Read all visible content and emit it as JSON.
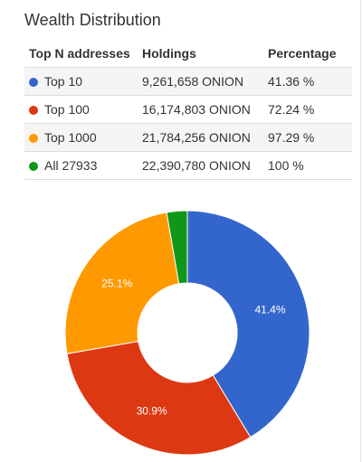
{
  "title": "Wealth Distribution",
  "table": {
    "headers": [
      "Top N addresses",
      "Holdings",
      "Percentage"
    ],
    "rows": [
      {
        "label": "Top 10",
        "holdings": "9,261,658 ONION",
        "percentage": "41.36 %",
        "color": "#3366cc"
      },
      {
        "label": "Top 100",
        "holdings": "16,174,803 ONION",
        "percentage": "72.24 %",
        "color": "#dc3912"
      },
      {
        "label": "Top 1000",
        "holdings": "21,784,256 ONION",
        "percentage": "97.29 %",
        "color": "#ff9900"
      },
      {
        "label": "All 27933",
        "holdings": "22,390,780 ONION",
        "percentage": "100 %",
        "color": "#109618"
      }
    ]
  },
  "chart_data": {
    "type": "pie",
    "donut": true,
    "slices": [
      {
        "value": 41.36,
        "label": "41.4%",
        "color": "#3366cc"
      },
      {
        "value": 30.88,
        "label": "30.9%",
        "color": "#dc3912"
      },
      {
        "value": 25.05,
        "label": "25.1%",
        "color": "#ff9900"
      },
      {
        "value": 2.71,
        "label": "",
        "color": "#109618"
      }
    ]
  }
}
